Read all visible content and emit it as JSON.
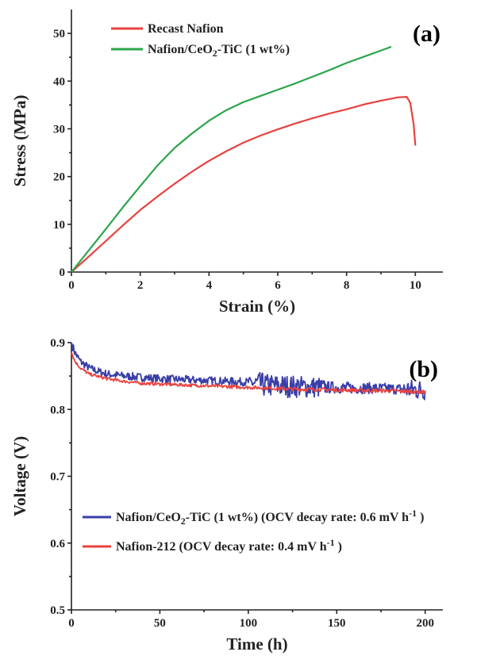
{
  "chart_data": [
    {
      "type": "line",
      "panel_label": "(a)",
      "xlabel": "Strain (%)",
      "ylabel": "Stress (MPa)",
      "xlim": [
        0,
        10.8
      ],
      "ylim": [
        0,
        55
      ],
      "xticks": [
        "0",
        "2",
        "4",
        "6",
        "8",
        "10"
      ],
      "yticks": [
        "0",
        "10",
        "20",
        "30",
        "40",
        "50"
      ],
      "legend_placement": "top-left",
      "series": [
        {
          "name": "Recast Nafion",
          "color": "#e8423f",
          "points": [
            [
              0,
              0
            ],
            [
              0.5,
              3.2
            ],
            [
              1,
              6.5
            ],
            [
              1.5,
              9.8
            ],
            [
              2,
              13
            ],
            [
              2.5,
              15.8
            ],
            [
              3,
              18.5
            ],
            [
              3.5,
              21
            ],
            [
              4,
              23.3
            ],
            [
              4.5,
              25.3
            ],
            [
              5,
              27.1
            ],
            [
              5.5,
              28.6
            ],
            [
              6,
              29.9
            ],
            [
              6.5,
              31.1
            ],
            [
              7,
              32.2
            ],
            [
              7.5,
              33.2
            ],
            [
              8,
              34.1
            ],
            [
              8.5,
              35.1
            ],
            [
              9,
              35.9
            ],
            [
              9.5,
              36.6
            ],
            [
              9.75,
              36.7
            ],
            [
              9.85,
              35.5
            ],
            [
              9.95,
              31
            ],
            [
              10.0,
              26.5
            ]
          ]
        },
        {
          "name_parts": [
            "Nafion/CeO",
            "2",
            "-TiC (1 wt%)"
          ],
          "color": "#2ba54b",
          "points": [
            [
              0,
              0
            ],
            [
              0.5,
              4.5
            ],
            [
              1,
              9
            ],
            [
              1.5,
              13.6
            ],
            [
              2,
              18
            ],
            [
              2.5,
              22.3
            ],
            [
              3,
              26
            ],
            [
              3.5,
              29
            ],
            [
              4,
              31.7
            ],
            [
              4.5,
              33.9
            ],
            [
              5,
              35.6
            ],
            [
              5.5,
              36.9
            ],
            [
              6,
              38.2
            ],
            [
              6.5,
              39.5
            ],
            [
              7,
              40.9
            ],
            [
              7.5,
              42.3
            ],
            [
              8,
              43.8
            ],
            [
              8.5,
              45.1
            ],
            [
              9,
              46.4
            ],
            [
              9.3,
              47.2
            ]
          ]
        }
      ]
    },
    {
      "type": "line",
      "panel_label": "(b)",
      "xlabel": "Time (h)",
      "ylabel": "Voltage (V)",
      "xlim": [
        0,
        210
      ],
      "ylim": [
        0.5,
        0.9
      ],
      "xticks": [
        "0",
        "50",
        "100",
        "150",
        "200"
      ],
      "yticks": [
        "0.5",
        "0.6",
        "0.7",
        "0.8",
        "0.9"
      ],
      "legend_placement": "bottom-left",
      "series": [
        {
          "name_parts": [
            "Nafion/CeO",
            "2",
            "-TiC (1 wt%) (OCV decay rate: 0.6 mV h",
            "-1",
            " )"
          ],
          "color": "#3a3fa8",
          "points": [
            [
              0,
              0.9
            ],
            [
              2,
              0.885
            ],
            [
              5,
              0.872
            ],
            [
              10,
              0.862
            ],
            [
              15,
              0.857
            ],
            [
              20,
              0.853
            ],
            [
              30,
              0.85
            ],
            [
              40,
              0.848
            ],
            [
              50,
              0.846
            ],
            [
              60,
              0.845
            ],
            [
              70,
              0.844
            ],
            [
              80,
              0.843
            ],
            [
              90,
              0.842
            ],
            [
              100,
              0.841
            ],
            [
              110,
              0.836
            ],
            [
              120,
              0.835
            ],
            [
              130,
              0.834
            ],
            [
              140,
              0.833
            ],
            [
              150,
              0.833
            ],
            [
              160,
              0.832
            ],
            [
              170,
              0.832
            ],
            [
              180,
              0.831
            ],
            [
              190,
              0.83
            ],
            [
              200,
              0.829
            ]
          ],
          "noise_amplitude": [
            [
              0,
              0.006
            ],
            [
              100,
              0.006
            ],
            [
              105,
              0.018
            ],
            [
              140,
              0.016
            ],
            [
              145,
              0.009
            ],
            [
              185,
              0.008
            ],
            [
              190,
              0.016
            ],
            [
              201,
              0.016
            ]
          ]
        },
        {
          "name_parts": [
            "Nafion-212 (OCV decay rate: 0.4 mV h",
            "-1",
            " )"
          ],
          "color": "#e8423f",
          "points": [
            [
              0,
              0.885
            ],
            [
              2,
              0.872
            ],
            [
              5,
              0.862
            ],
            [
              10,
              0.853
            ],
            [
              20,
              0.846
            ],
            [
              30,
              0.842
            ],
            [
              40,
              0.839
            ],
            [
              50,
              0.838
            ],
            [
              60,
              0.837
            ],
            [
              70,
              0.836
            ],
            [
              80,
              0.835
            ],
            [
              90,
              0.834
            ],
            [
              100,
              0.833
            ],
            [
              110,
              0.832
            ],
            [
              120,
              0.831
            ],
            [
              130,
              0.83
            ],
            [
              140,
              0.83
            ],
            [
              150,
              0.829
            ],
            [
              160,
              0.829
            ],
            [
              170,
              0.828
            ],
            [
              180,
              0.828
            ],
            [
              190,
              0.827
            ],
            [
              200,
              0.826
            ]
          ],
          "noise_amplitude": [
            [
              0,
              0.002
            ],
            [
              201,
              0.003
            ]
          ]
        }
      ]
    }
  ]
}
